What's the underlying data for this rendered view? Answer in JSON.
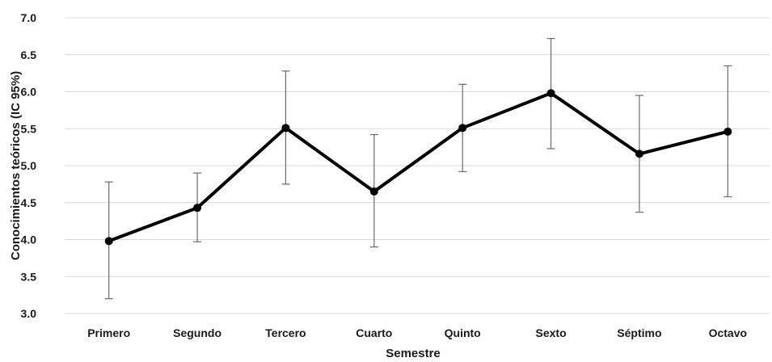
{
  "chart_data": {
    "type": "line",
    "title": "",
    "xlabel": "Semestre",
    "ylabel": "Conocimientos teóricos (IC 95%)",
    "categories": [
      "Primero",
      "Segundo",
      "Tercero",
      "Cuarto",
      "Quinto",
      "Sexto",
      "Séptimo",
      "Octavo"
    ],
    "values": [
      3.98,
      4.43,
      5.51,
      4.65,
      5.51,
      5.98,
      5.16,
      5.46
    ],
    "ci_lower": [
      3.2,
      3.97,
      4.75,
      3.9,
      4.92,
      5.23,
      4.37,
      4.58
    ],
    "ci_upper": [
      4.78,
      4.9,
      6.28,
      5.42,
      6.1,
      6.72,
      5.95,
      6.35
    ],
    "ylim": [
      3.0,
      7.0
    ],
    "yticks": [
      "3.0",
      "3.5",
      "4.0",
      "4.5",
      "5.0",
      "5.5",
      "6.0",
      "6.5",
      "7.0"
    ],
    "grid": true,
    "legend": "none",
    "line_color": "#000000",
    "errorbar_color": "#6b6b6b",
    "grid_color": "#d9d9d9"
  }
}
